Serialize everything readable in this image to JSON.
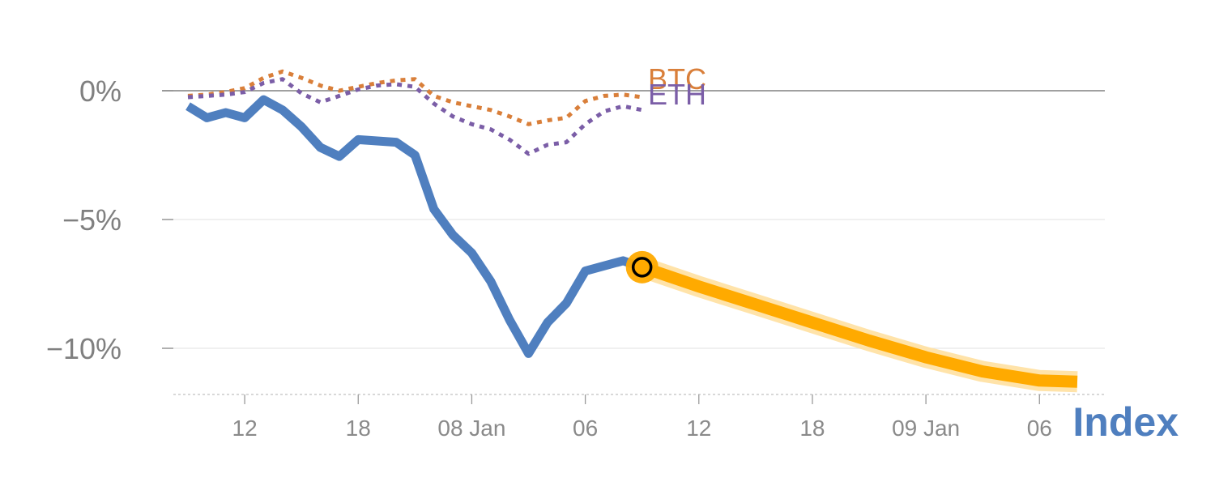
{
  "chart_data": {
    "type": "line",
    "title": "Index",
    "ylabel": "",
    "xlabel": "",
    "ylim": [
      -11.8,
      2.2
    ],
    "xlim": [
      0,
      47
    ],
    "grid": true,
    "y_ticks": [
      {
        "value": 0,
        "label": "0%"
      },
      {
        "value": -5,
        "label": "−5%"
      },
      {
        "value": -10,
        "label": "−10%"
      }
    ],
    "x_ticks": [
      {
        "value": 3,
        "label": "12"
      },
      {
        "value": 9,
        "label": "18"
      },
      {
        "value": 15,
        "label": "08 Jan"
      },
      {
        "value": 21,
        "label": "06"
      },
      {
        "value": 27,
        "label": "12"
      },
      {
        "value": 33,
        "label": "18"
      },
      {
        "value": 39,
        "label": "09 Jan"
      },
      {
        "value": 45,
        "label": "06"
      }
    ],
    "series": [
      {
        "name": "BTC",
        "style": "dotted",
        "color": "#d97f3a",
        "x": [
          0,
          1,
          2,
          3,
          4,
          5,
          6,
          7,
          8,
          9,
          10,
          11,
          12,
          13,
          14,
          15,
          16,
          17,
          18,
          19,
          20,
          21,
          22,
          23,
          24
        ],
        "values": [
          -0.2,
          -0.15,
          -0.05,
          0.1,
          0.5,
          0.75,
          0.5,
          0.2,
          0.0,
          0.15,
          0.3,
          0.4,
          0.45,
          -0.2,
          -0.45,
          -0.6,
          -0.75,
          -1.0,
          -1.3,
          -1.15,
          -1.05,
          -0.4,
          -0.2,
          -0.15,
          -0.25
        ]
      },
      {
        "name": "ETH",
        "style": "dotted",
        "color": "#7b5ea7",
        "x": [
          0,
          1,
          2,
          3,
          4,
          5,
          6,
          7,
          8,
          9,
          10,
          11,
          12,
          13,
          14,
          15,
          16,
          17,
          18,
          19,
          20,
          21,
          22,
          23,
          24
        ],
        "values": [
          -0.25,
          -0.2,
          -0.15,
          -0.05,
          0.3,
          0.45,
          -0.1,
          -0.45,
          -0.2,
          0.05,
          0.2,
          0.25,
          0.15,
          -0.5,
          -1.0,
          -1.3,
          -1.5,
          -1.9,
          -2.45,
          -2.1,
          -2.0,
          -1.3,
          -0.8,
          -0.6,
          -0.75
        ]
      },
      {
        "name": "",
        "style": "solid",
        "color": "#4f7fbf",
        "x": [
          0,
          1,
          2,
          3,
          4,
          5,
          6,
          7,
          8,
          9,
          10,
          11,
          12,
          13,
          14,
          15,
          16,
          17,
          18,
          19,
          20,
          21,
          22,
          23,
          24
        ],
        "values": [
          -0.6,
          -1.05,
          -0.85,
          -1.05,
          -0.35,
          -0.75,
          -1.4,
          -2.2,
          -2.55,
          -1.9,
          -1.95,
          -2.0,
          -2.5,
          -4.6,
          -5.6,
          -6.3,
          -7.4,
          -8.9,
          -10.2,
          -9.0,
          -8.25,
          -7.0,
          -6.8,
          -6.6,
          -6.85
        ]
      },
      {
        "name": "",
        "style": "forecast",
        "color": "#ffaa00",
        "x": [
          24,
          27,
          30,
          33,
          36,
          39,
          42,
          45,
          47
        ],
        "values": [
          -6.85,
          -7.6,
          -8.3,
          -9.0,
          -9.7,
          -10.35,
          -10.9,
          -11.25,
          -11.3
        ]
      }
    ],
    "marker": {
      "x": 24,
      "value": -6.85
    },
    "legend_placement": "right"
  },
  "colors": {
    "index": "#4f7fbf",
    "btc": "#d97f3a",
    "eth": "#7b5ea7",
    "forecast": "#ffaa00",
    "forecast_glow": "#ffe0a0",
    "axis_text": "#808080",
    "grid": "#e6e6e6",
    "zero_line": "#808080"
  }
}
